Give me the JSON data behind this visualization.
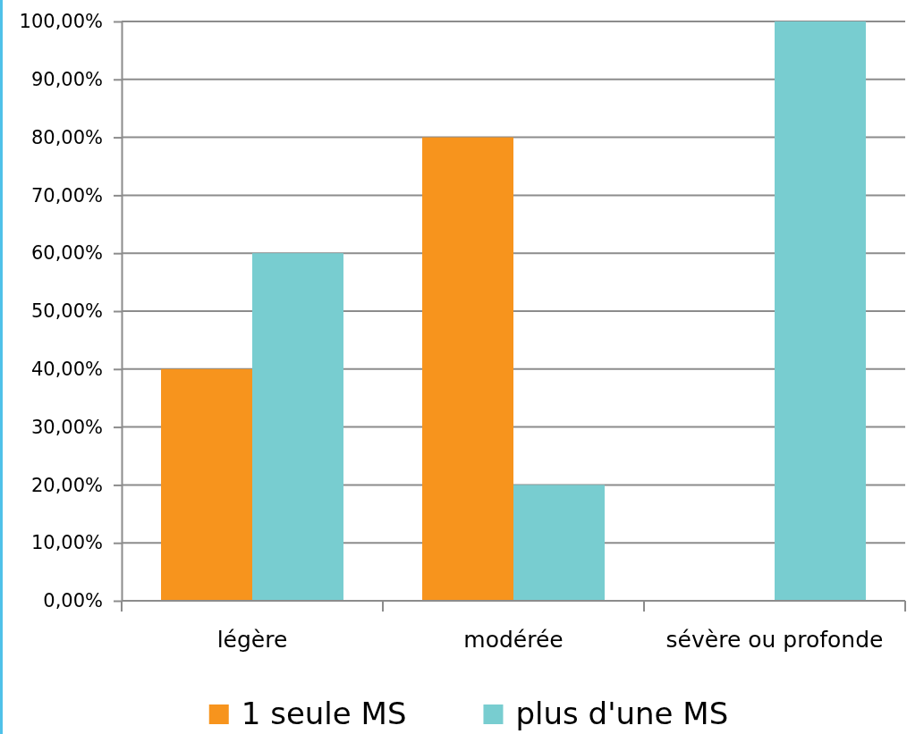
{
  "chart_data": {
    "type": "bar",
    "categories": [
      "légère",
      "modérée",
      "sévère ou profonde"
    ],
    "series": [
      {
        "name": "1 seule MS",
        "color": "#f7941d",
        "values": [
          40,
          80,
          0
        ]
      },
      {
        "name": "plus d'une MS",
        "color": "#78cdd0",
        "values": [
          60,
          20,
          100
        ]
      }
    ],
    "ylim": [
      0,
      100
    ],
    "yticks": [
      {
        "value": 0,
        "label": "0,00%"
      },
      {
        "value": 10,
        "label": "10,00%"
      },
      {
        "value": 20,
        "label": "20,00%"
      },
      {
        "value": 30,
        "label": "30,00%"
      },
      {
        "value": 40,
        "label": "40,00%"
      },
      {
        "value": 50,
        "label": "50,00%"
      },
      {
        "value": 60,
        "label": "60,00%"
      },
      {
        "value": 70,
        "label": "70,00%"
      },
      {
        "value": 80,
        "label": "80,00%"
      },
      {
        "value": 90,
        "label": "90,00%"
      },
      {
        "value": 100,
        "label": "100,00%"
      }
    ],
    "grid": "y",
    "legend": "bottom"
  }
}
